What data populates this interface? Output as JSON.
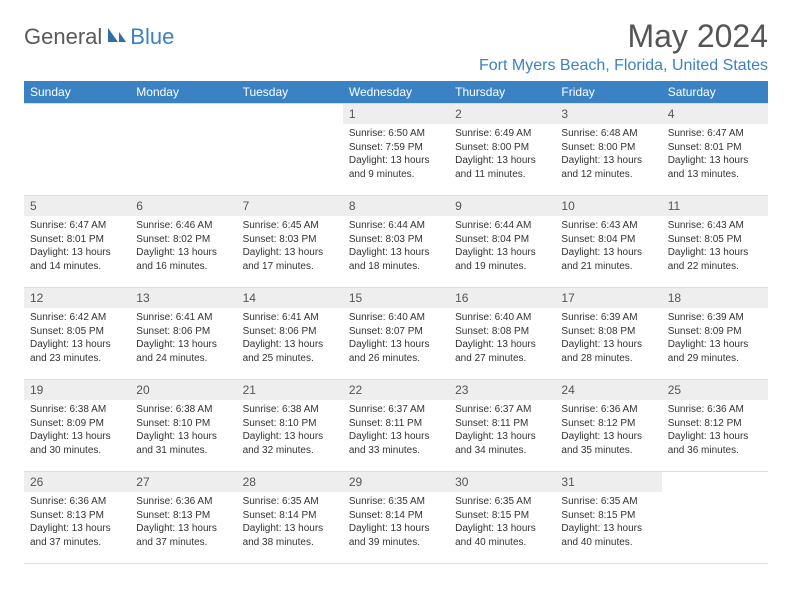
{
  "logo": {
    "general": "General",
    "blue": "Blue",
    "icon_color": "#2f6ea8"
  },
  "title": "May 2024",
  "location": "Fort Myers Beach, Florida, United States",
  "weekdays": [
    "Sunday",
    "Monday",
    "Tuesday",
    "Wednesday",
    "Thursday",
    "Friday",
    "Saturday"
  ],
  "colors": {
    "header_bg": "#3b82c4",
    "header_text": "#ffffff",
    "daynum_bg": "#eeeeee",
    "border": "#dddddd",
    "title_color": "#555555",
    "location_color": "#3b82c4"
  },
  "fonts": {
    "title_size": 32,
    "location_size": 16,
    "weekday_size": 12,
    "daynum_size": 12,
    "body_size": 10
  },
  "weeks": [
    [
      null,
      null,
      null,
      {
        "n": "1",
        "sunrise": "Sunrise: 6:50 AM",
        "sunset": "Sunset: 7:59 PM",
        "daylight": "Daylight: 13 hours and 9 minutes."
      },
      {
        "n": "2",
        "sunrise": "Sunrise: 6:49 AM",
        "sunset": "Sunset: 8:00 PM",
        "daylight": "Daylight: 13 hours and 11 minutes."
      },
      {
        "n": "3",
        "sunrise": "Sunrise: 6:48 AM",
        "sunset": "Sunset: 8:00 PM",
        "daylight": "Daylight: 13 hours and 12 minutes."
      },
      {
        "n": "4",
        "sunrise": "Sunrise: 6:47 AM",
        "sunset": "Sunset: 8:01 PM",
        "daylight": "Daylight: 13 hours and 13 minutes."
      }
    ],
    [
      {
        "n": "5",
        "sunrise": "Sunrise: 6:47 AM",
        "sunset": "Sunset: 8:01 PM",
        "daylight": "Daylight: 13 hours and 14 minutes."
      },
      {
        "n": "6",
        "sunrise": "Sunrise: 6:46 AM",
        "sunset": "Sunset: 8:02 PM",
        "daylight": "Daylight: 13 hours and 16 minutes."
      },
      {
        "n": "7",
        "sunrise": "Sunrise: 6:45 AM",
        "sunset": "Sunset: 8:03 PM",
        "daylight": "Daylight: 13 hours and 17 minutes."
      },
      {
        "n": "8",
        "sunrise": "Sunrise: 6:44 AM",
        "sunset": "Sunset: 8:03 PM",
        "daylight": "Daylight: 13 hours and 18 minutes."
      },
      {
        "n": "9",
        "sunrise": "Sunrise: 6:44 AM",
        "sunset": "Sunset: 8:04 PM",
        "daylight": "Daylight: 13 hours and 19 minutes."
      },
      {
        "n": "10",
        "sunrise": "Sunrise: 6:43 AM",
        "sunset": "Sunset: 8:04 PM",
        "daylight": "Daylight: 13 hours and 21 minutes."
      },
      {
        "n": "11",
        "sunrise": "Sunrise: 6:43 AM",
        "sunset": "Sunset: 8:05 PM",
        "daylight": "Daylight: 13 hours and 22 minutes."
      }
    ],
    [
      {
        "n": "12",
        "sunrise": "Sunrise: 6:42 AM",
        "sunset": "Sunset: 8:05 PM",
        "daylight": "Daylight: 13 hours and 23 minutes."
      },
      {
        "n": "13",
        "sunrise": "Sunrise: 6:41 AM",
        "sunset": "Sunset: 8:06 PM",
        "daylight": "Daylight: 13 hours and 24 minutes."
      },
      {
        "n": "14",
        "sunrise": "Sunrise: 6:41 AM",
        "sunset": "Sunset: 8:06 PM",
        "daylight": "Daylight: 13 hours and 25 minutes."
      },
      {
        "n": "15",
        "sunrise": "Sunrise: 6:40 AM",
        "sunset": "Sunset: 8:07 PM",
        "daylight": "Daylight: 13 hours and 26 minutes."
      },
      {
        "n": "16",
        "sunrise": "Sunrise: 6:40 AM",
        "sunset": "Sunset: 8:08 PM",
        "daylight": "Daylight: 13 hours and 27 minutes."
      },
      {
        "n": "17",
        "sunrise": "Sunrise: 6:39 AM",
        "sunset": "Sunset: 8:08 PM",
        "daylight": "Daylight: 13 hours and 28 minutes."
      },
      {
        "n": "18",
        "sunrise": "Sunrise: 6:39 AM",
        "sunset": "Sunset: 8:09 PM",
        "daylight": "Daylight: 13 hours and 29 minutes."
      }
    ],
    [
      {
        "n": "19",
        "sunrise": "Sunrise: 6:38 AM",
        "sunset": "Sunset: 8:09 PM",
        "daylight": "Daylight: 13 hours and 30 minutes."
      },
      {
        "n": "20",
        "sunrise": "Sunrise: 6:38 AM",
        "sunset": "Sunset: 8:10 PM",
        "daylight": "Daylight: 13 hours and 31 minutes."
      },
      {
        "n": "21",
        "sunrise": "Sunrise: 6:38 AM",
        "sunset": "Sunset: 8:10 PM",
        "daylight": "Daylight: 13 hours and 32 minutes."
      },
      {
        "n": "22",
        "sunrise": "Sunrise: 6:37 AM",
        "sunset": "Sunset: 8:11 PM",
        "daylight": "Daylight: 13 hours and 33 minutes."
      },
      {
        "n": "23",
        "sunrise": "Sunrise: 6:37 AM",
        "sunset": "Sunset: 8:11 PM",
        "daylight": "Daylight: 13 hours and 34 minutes."
      },
      {
        "n": "24",
        "sunrise": "Sunrise: 6:36 AM",
        "sunset": "Sunset: 8:12 PM",
        "daylight": "Daylight: 13 hours and 35 minutes."
      },
      {
        "n": "25",
        "sunrise": "Sunrise: 6:36 AM",
        "sunset": "Sunset: 8:12 PM",
        "daylight": "Daylight: 13 hours and 36 minutes."
      }
    ],
    [
      {
        "n": "26",
        "sunrise": "Sunrise: 6:36 AM",
        "sunset": "Sunset: 8:13 PM",
        "daylight": "Daylight: 13 hours and 37 minutes."
      },
      {
        "n": "27",
        "sunrise": "Sunrise: 6:36 AM",
        "sunset": "Sunset: 8:13 PM",
        "daylight": "Daylight: 13 hours and 37 minutes."
      },
      {
        "n": "28",
        "sunrise": "Sunrise: 6:35 AM",
        "sunset": "Sunset: 8:14 PM",
        "daylight": "Daylight: 13 hours and 38 minutes."
      },
      {
        "n": "29",
        "sunrise": "Sunrise: 6:35 AM",
        "sunset": "Sunset: 8:14 PM",
        "daylight": "Daylight: 13 hours and 39 minutes."
      },
      {
        "n": "30",
        "sunrise": "Sunrise: 6:35 AM",
        "sunset": "Sunset: 8:15 PM",
        "daylight": "Daylight: 13 hours and 40 minutes."
      },
      {
        "n": "31",
        "sunrise": "Sunrise: 6:35 AM",
        "sunset": "Sunset: 8:15 PM",
        "daylight": "Daylight: 13 hours and 40 minutes."
      },
      null
    ]
  ]
}
